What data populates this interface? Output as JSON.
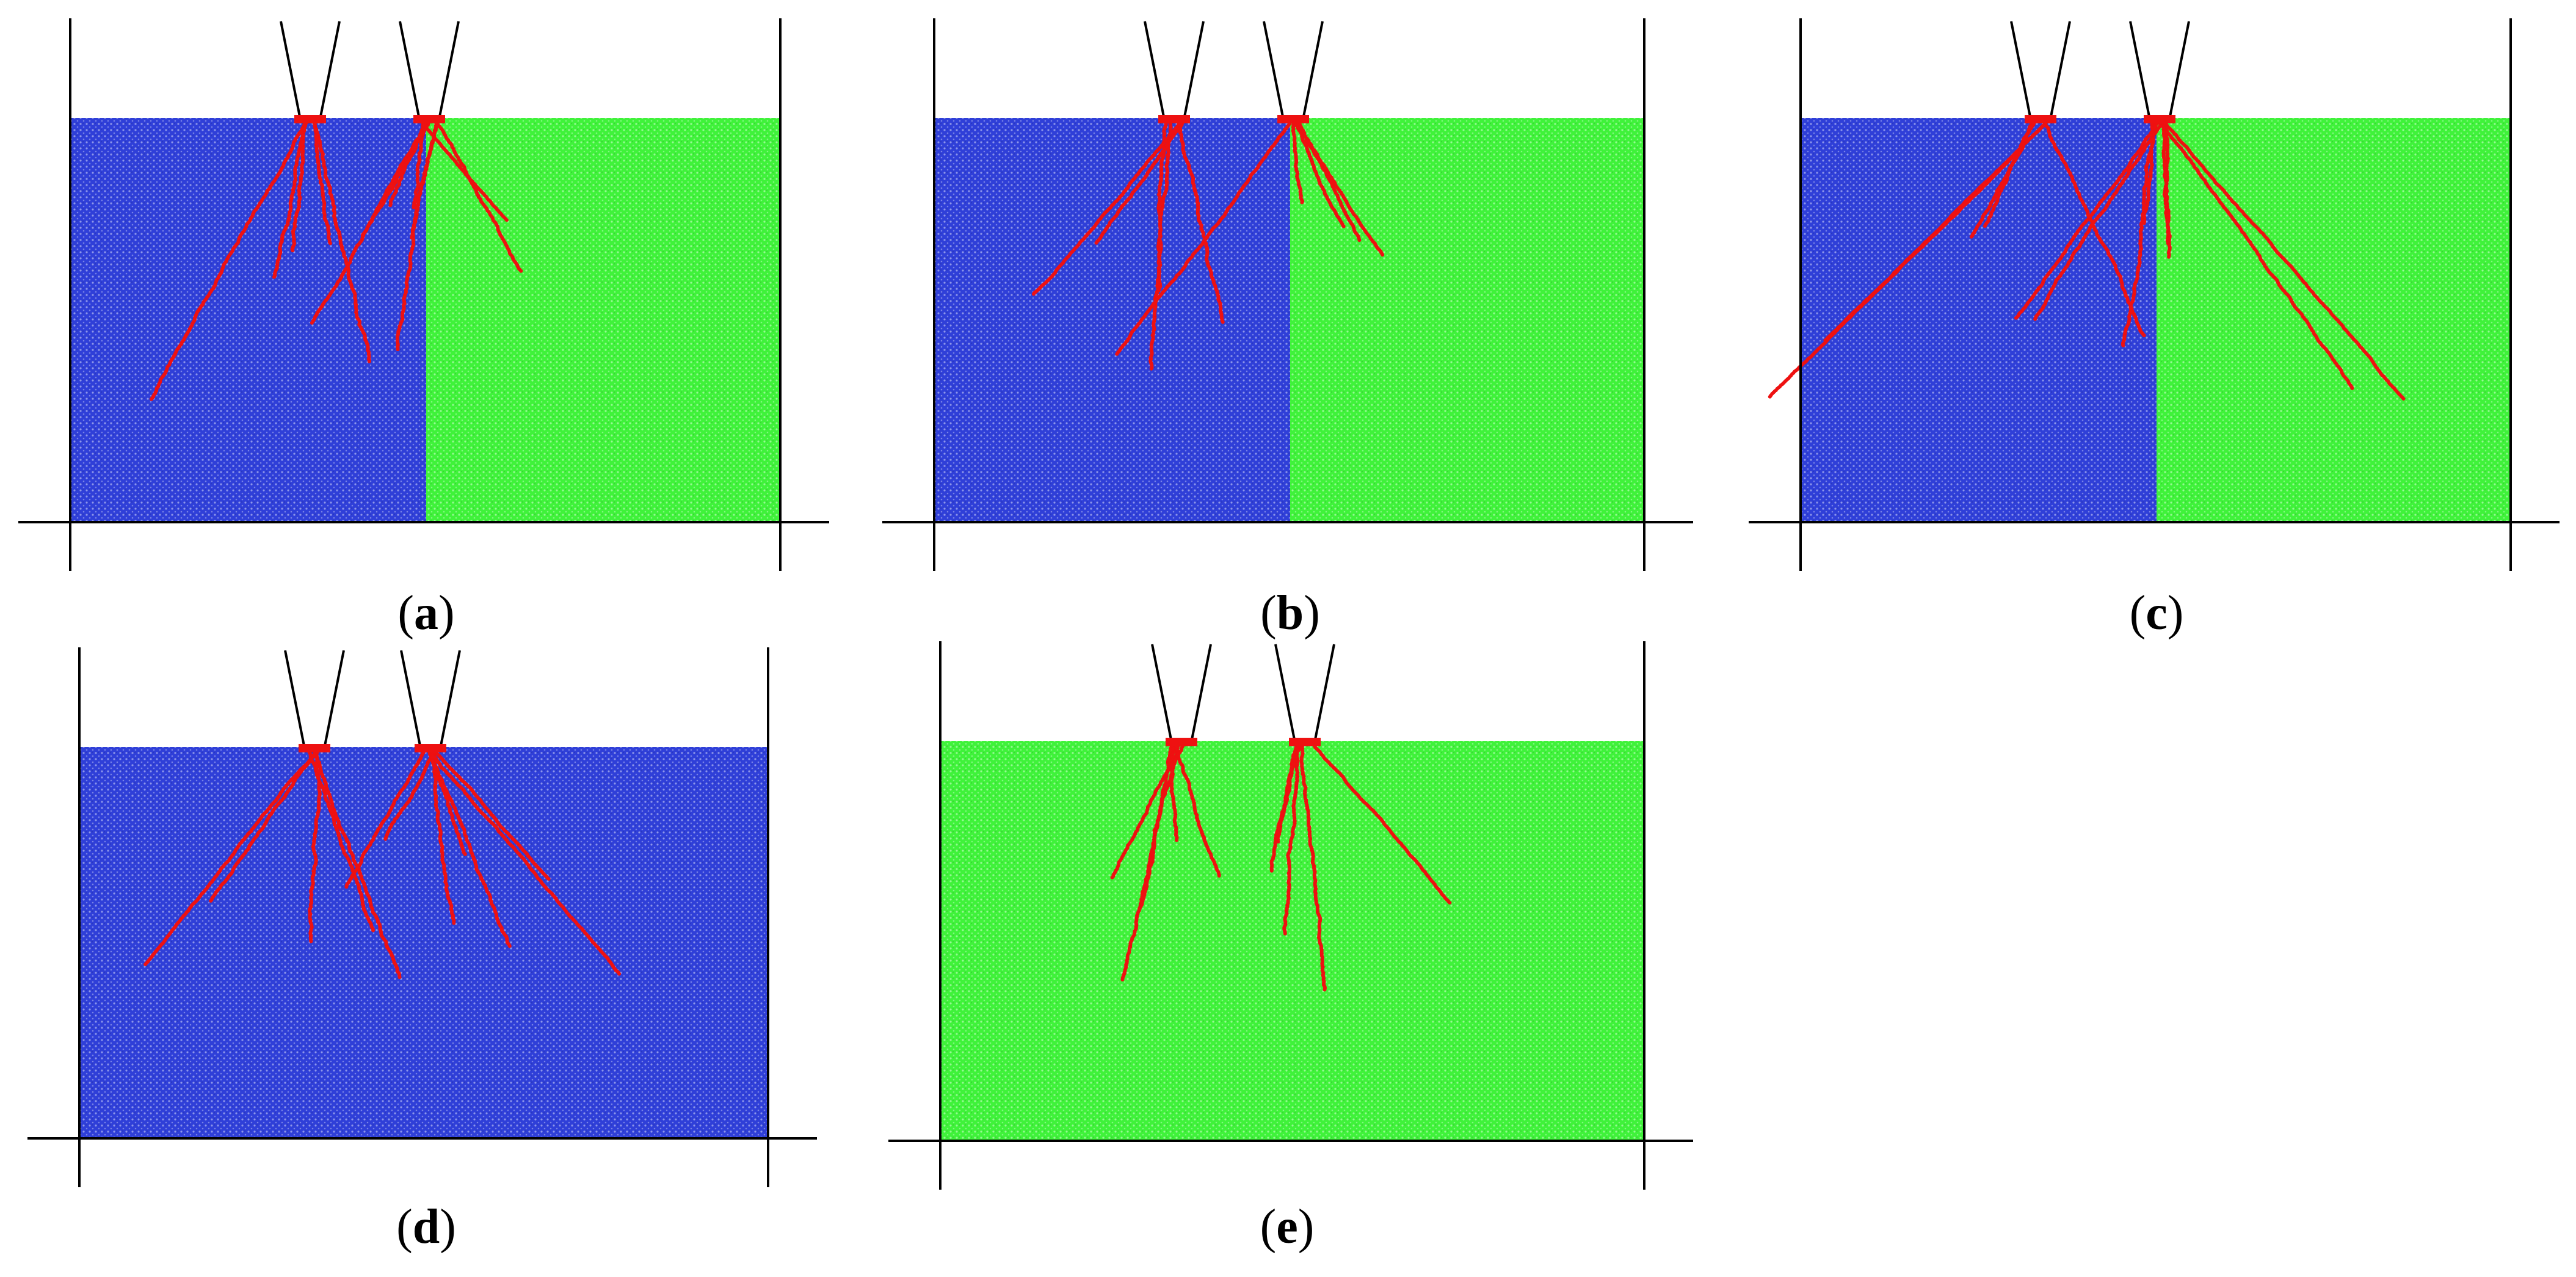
{
  "panels": [
    {
      "id": "a",
      "label": "a",
      "left_material": "blue",
      "right_material": "green",
      "split": true
    },
    {
      "id": "b",
      "label": "b",
      "left_material": "blue",
      "right_material": "green",
      "split": true
    },
    {
      "id": "c",
      "label": "c",
      "left_material": "blue",
      "right_material": "green",
      "split": true
    },
    {
      "id": "d",
      "label": "d",
      "left_material": "blue",
      "right_material": "blue",
      "split": false
    },
    {
      "id": "e",
      "label": "e",
      "left_material": "green",
      "right_material": "green",
      "split": false
    }
  ],
  "colors": {
    "blue": "#2f3fd8",
    "green": "#3ff23a",
    "fracture": "#ee1111",
    "line": "#000000"
  }
}
